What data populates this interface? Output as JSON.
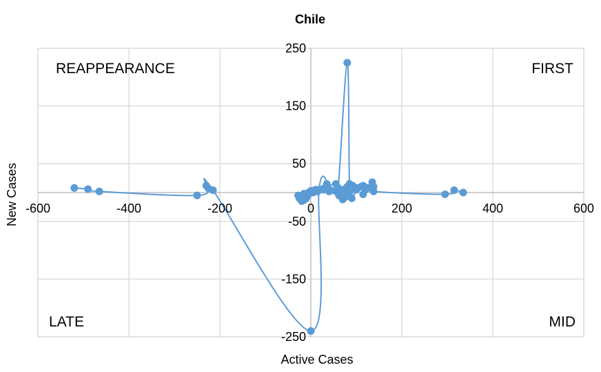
{
  "chart_data": {
    "type": "scatter",
    "title": "Chile",
    "xlabel": "Active Cases",
    "ylabel": "New Cases",
    "xlim": [
      -600,
      600
    ],
    "ylim": [
      -250,
      250
    ],
    "xticks": [
      -600,
      -400,
      -200,
      0,
      200,
      400,
      600
    ],
    "yticks": [
      250,
      150,
      50,
      -50,
      -150,
      -250
    ],
    "grid": true,
    "legend": "none",
    "series_color": "#5b9bd5",
    "quadrant_labels": {
      "top_left": "REAPPEARANCE",
      "top_right": "FIRST",
      "bottom_left": "LATE",
      "bottom_right": "MID"
    },
    "x": [
      -520,
      -490,
      -465,
      -250,
      -230,
      -225,
      -215,
      0,
      18,
      35,
      10,
      55,
      60,
      80,
      85,
      92,
      100,
      90,
      75,
      70,
      60,
      72,
      76,
      85,
      62,
      40,
      20,
      0,
      -5,
      -10,
      -15,
      -20,
      -25,
      -28,
      -15,
      -5,
      5,
      15,
      28,
      42,
      55,
      68,
      80,
      90,
      100,
      110,
      115,
      115,
      120,
      125,
      135,
      138,
      138,
      295,
      315,
      335
    ],
    "y": [
      8,
      6,
      2,
      -5,
      12,
      7,
      4,
      -240,
      5,
      15,
      5,
      15,
      5,
      225,
      15,
      12,
      8,
      -10,
      -8,
      -12,
      8,
      5,
      3,
      0,
      -5,
      2,
      5,
      3,
      0,
      -10,
      -13,
      -15,
      -10,
      -5,
      -2,
      -3,
      0,
      2,
      5,
      5,
      3,
      5,
      10,
      8,
      5,
      10,
      12,
      -3,
      5,
      8,
      18,
      10,
      2,
      -3,
      4,
      0
    ]
  }
}
